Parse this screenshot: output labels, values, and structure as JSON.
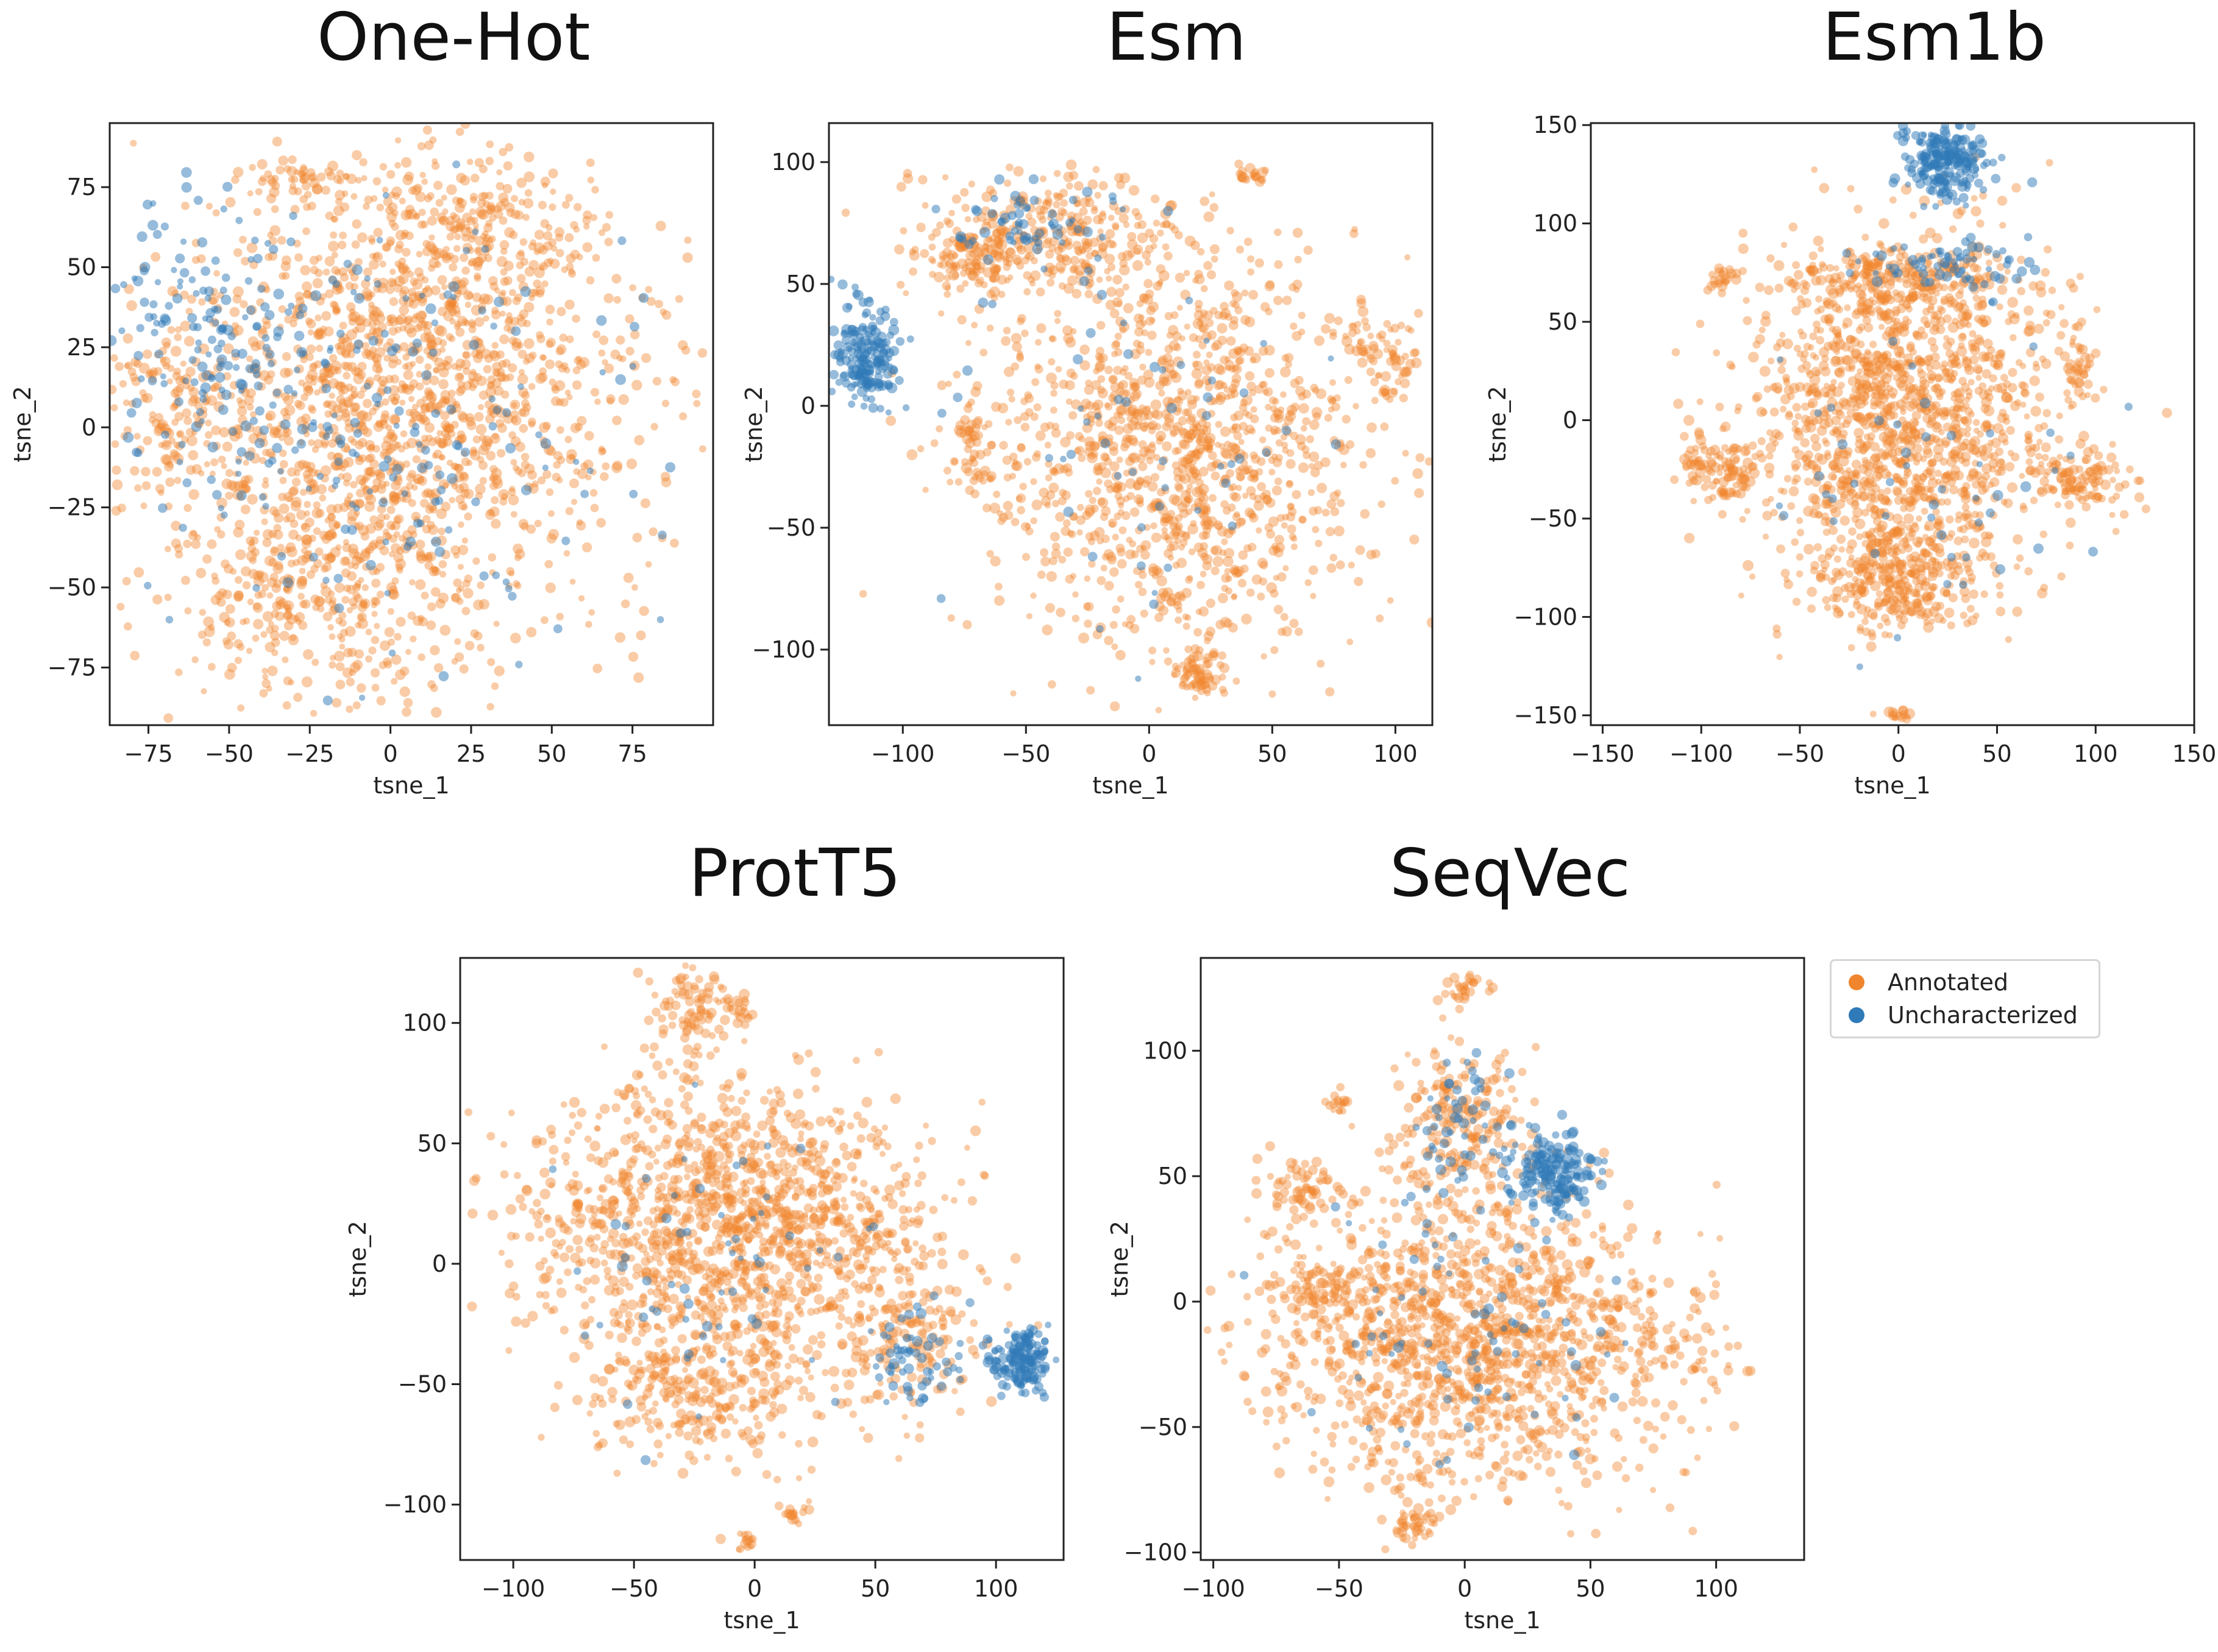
{
  "colors": {
    "annotated": "#f0852d",
    "uncharacterized": "#2f7ab8"
  },
  "legend": {
    "items": [
      {
        "label": "Annotated",
        "color": "#f0852d"
      },
      {
        "label": "Uncharacterized",
        "color": "#2f7ab8"
      }
    ]
  },
  "chart_data": [
    {
      "type": "scatter",
      "title": "One-Hot",
      "xlabel": "tsne_1",
      "ylabel": "tsne_2",
      "xlim": [
        -87,
        100
      ],
      "ylim": [
        -93,
        95
      ],
      "xticks": [
        -75,
        -50,
        -25,
        0,
        25,
        50,
        75
      ],
      "yticks": [
        -75,
        -50,
        -25,
        0,
        25,
        50,
        75
      ],
      "series": [
        {
          "name": "Annotated",
          "clusters": [
            {
              "cx": 0,
              "cy": 0,
              "sx": 38,
              "sy": 36,
              "n": 1400
            },
            {
              "cx": 15,
              "cy": 40,
              "sx": 25,
              "sy": 20,
              "n": 300
            },
            {
              "cx": -25,
              "cy": -50,
              "sx": 22,
              "sy": 18,
              "n": 250
            },
            {
              "cx": 30,
              "cy": 65,
              "sx": 15,
              "sy": 10,
              "n": 120
            },
            {
              "cx": -28,
              "cy": 78,
              "sx": 8,
              "sy": 3,
              "n": 50
            },
            {
              "cx": -70,
              "cy": 10,
              "sx": 10,
              "sy": 15,
              "n": 120
            }
          ]
        },
        {
          "name": "Uncharacterized",
          "clusters": [
            {
              "cx": -50,
              "cy": 25,
              "sx": 20,
              "sy": 22,
              "n": 180
            },
            {
              "cx": 5,
              "cy": 0,
              "sx": 35,
              "sy": 35,
              "n": 160
            }
          ]
        }
      ]
    },
    {
      "type": "scatter",
      "title": "Esm",
      "xlabel": "tsne_1",
      "ylabel": "tsne_2",
      "xlim": [
        -130,
        115
      ],
      "ylim": [
        -131,
        116
      ],
      "xticks": [
        -100,
        -50,
        0,
        50,
        100
      ],
      "yticks": [
        -100,
        -50,
        0,
        50,
        100
      ],
      "series": [
        {
          "name": "Annotated",
          "clusters": [
            {
              "cx": 10,
              "cy": -20,
              "sx": 38,
              "sy": 38,
              "n": 1200
            },
            {
              "cx": -40,
              "cy": 70,
              "sx": 28,
              "sy": 12,
              "n": 300
            },
            {
              "cx": -70,
              "cy": 60,
              "sx": 10,
              "sy": 6,
              "n": 100
            },
            {
              "cx": 20,
              "cy": -110,
              "sx": 6,
              "sy": 5,
              "n": 60
            },
            {
              "cx": 95,
              "cy": 20,
              "sx": 8,
              "sy": 10,
              "n": 70
            },
            {
              "cx": 42,
              "cy": 95,
              "sx": 3,
              "sy": 2,
              "n": 20
            },
            {
              "cx": -72,
              "cy": -15,
              "sx": 3,
              "sy": 12,
              "n": 50
            }
          ]
        },
        {
          "name": "Uncharacterized",
          "clusters": [
            {
              "cx": -115,
              "cy": 20,
              "sx": 6,
              "sy": 10,
              "n": 180
            },
            {
              "cx": -50,
              "cy": 75,
              "sx": 15,
              "sy": 8,
              "n": 60
            },
            {
              "cx": 0,
              "cy": -10,
              "sx": 35,
              "sy": 35,
              "n": 60
            }
          ]
        }
      ]
    },
    {
      "type": "scatter",
      "title": "Esm1b",
      "xlabel": "tsne_1",
      "ylabel": "tsne_2",
      "xlim": [
        -156,
        150
      ],
      "ylim": [
        -155,
        151
      ],
      "xticks": [
        -150,
        -100,
        -50,
        0,
        50,
        100,
        150
      ],
      "yticks": [
        -150,
        -100,
        -50,
        0,
        50,
        100,
        150
      ],
      "series": [
        {
          "name": "Annotated",
          "clusters": [
            {
              "cx": 0,
              "cy": 0,
              "sx": 38,
              "sy": 45,
              "n": 1400
            },
            {
              "cx": 0,
              "cy": -80,
              "sx": 20,
              "sy": 15,
              "n": 250
            },
            {
              "cx": -90,
              "cy": -25,
              "sx": 10,
              "sy": 8,
              "n": 100
            },
            {
              "cx": 90,
              "cy": -30,
              "sx": 12,
              "sy": 8,
              "n": 100
            },
            {
              "cx": 5,
              "cy": 70,
              "sx": 30,
              "sy": 8,
              "n": 200
            },
            {
              "cx": -90,
              "cy": 72,
              "sx": 3,
              "sy": 4,
              "n": 20
            },
            {
              "cx": 0,
              "cy": -150,
              "sx": 3,
              "sy": 2,
              "n": 15
            },
            {
              "cx": 90,
              "cy": 25,
              "sx": 5,
              "sy": 10,
              "n": 40
            }
          ]
        },
        {
          "name": "Uncharacterized",
          "clusters": [
            {
              "cx": 25,
              "cy": 130,
              "sx": 10,
              "sy": 10,
              "n": 220
            },
            {
              "cx": 25,
              "cy": 80,
              "sx": 20,
              "sy": 6,
              "n": 70
            },
            {
              "cx": 10,
              "cy": -20,
              "sx": 40,
              "sy": 45,
              "n": 50
            }
          ]
        }
      ]
    },
    {
      "type": "scatter",
      "title": "ProtT5",
      "xlabel": "tsne_1",
      "ylabel": "tsne_2",
      "xlim": [
        -122,
        128
      ],
      "ylim": [
        -123,
        127
      ],
      "xticks": [
        -100,
        -50,
        0,
        50,
        100
      ],
      "yticks": [
        -100,
        -50,
        0,
        50,
        100
      ],
      "series": [
        {
          "name": "Annotated",
          "clusters": [
            {
              "cx": -10,
              "cy": 15,
              "sx": 42,
              "sy": 30,
              "n": 1400
            },
            {
              "cx": -20,
              "cy": -55,
              "sx": 25,
              "sy": 15,
              "n": 250
            },
            {
              "cx": -25,
              "cy": 105,
              "sx": 8,
              "sy": 8,
              "n": 90
            },
            {
              "cx": -5,
              "cy": -115,
              "sx": 3,
              "sy": 2,
              "n": 15
            },
            {
              "cx": 15,
              "cy": -105,
              "sx": 3,
              "sy": 3,
              "n": 15
            },
            {
              "cx": 65,
              "cy": -30,
              "sx": 12,
              "sy": 15,
              "n": 120
            },
            {
              "cx": -5,
              "cy": 105,
              "sx": 4,
              "sy": 3,
              "n": 15
            }
          ]
        },
        {
          "name": "Uncharacterized",
          "clusters": [
            {
              "cx": 110,
              "cy": -40,
              "sx": 6,
              "sy": 6,
              "n": 150
            },
            {
              "cx": 70,
              "cy": -40,
              "sx": 10,
              "sy": 10,
              "n": 60
            },
            {
              "cx": -20,
              "cy": 0,
              "sx": 40,
              "sy": 30,
              "n": 60
            }
          ]
        }
      ]
    },
    {
      "type": "scatter",
      "title": "SeqVec",
      "xlabel": "tsne_1",
      "ylabel": "tsne_2",
      "xlim": [
        -105,
        135
      ],
      "ylim": [
        -103,
        137
      ],
      "xticks": [
        -100,
        -50,
        0,
        50,
        100
      ],
      "yticks": [
        -100,
        -50,
        0,
        50,
        100
      ],
      "series": [
        {
          "name": "Annotated",
          "clusters": [
            {
              "cx": 0,
              "cy": -15,
              "sx": 40,
              "sy": 30,
              "n": 1400
            },
            {
              "cx": 0,
              "cy": 70,
              "sx": 12,
              "sy": 15,
              "n": 200
            },
            {
              "cx": -65,
              "cy": 45,
              "sx": 6,
              "sy": 6,
              "n": 60
            },
            {
              "cx": -60,
              "cy": 5,
              "sx": 10,
              "sy": 5,
              "n": 60
            },
            {
              "cx": -20,
              "cy": -90,
              "sx": 5,
              "sy": 4,
              "n": 40
            },
            {
              "cx": 0,
              "cy": 125,
              "sx": 5,
              "sy": 3,
              "n": 30
            },
            {
              "cx": -50,
              "cy": 80,
              "sx": 3,
              "sy": 2,
              "n": 15
            },
            {
              "cx": 85,
              "cy": -15,
              "sx": 10,
              "sy": 10,
              "n": 40
            }
          ]
        },
        {
          "name": "Uncharacterized",
          "clusters": [
            {
              "cx": 35,
              "cy": 52,
              "sx": 8,
              "sy": 8,
              "n": 180
            },
            {
              "cx": 0,
              "cy": 70,
              "sx": 10,
              "sy": 15,
              "n": 50
            },
            {
              "cx": 0,
              "cy": -10,
              "sx": 35,
              "sy": 30,
              "n": 80
            }
          ]
        }
      ]
    }
  ]
}
